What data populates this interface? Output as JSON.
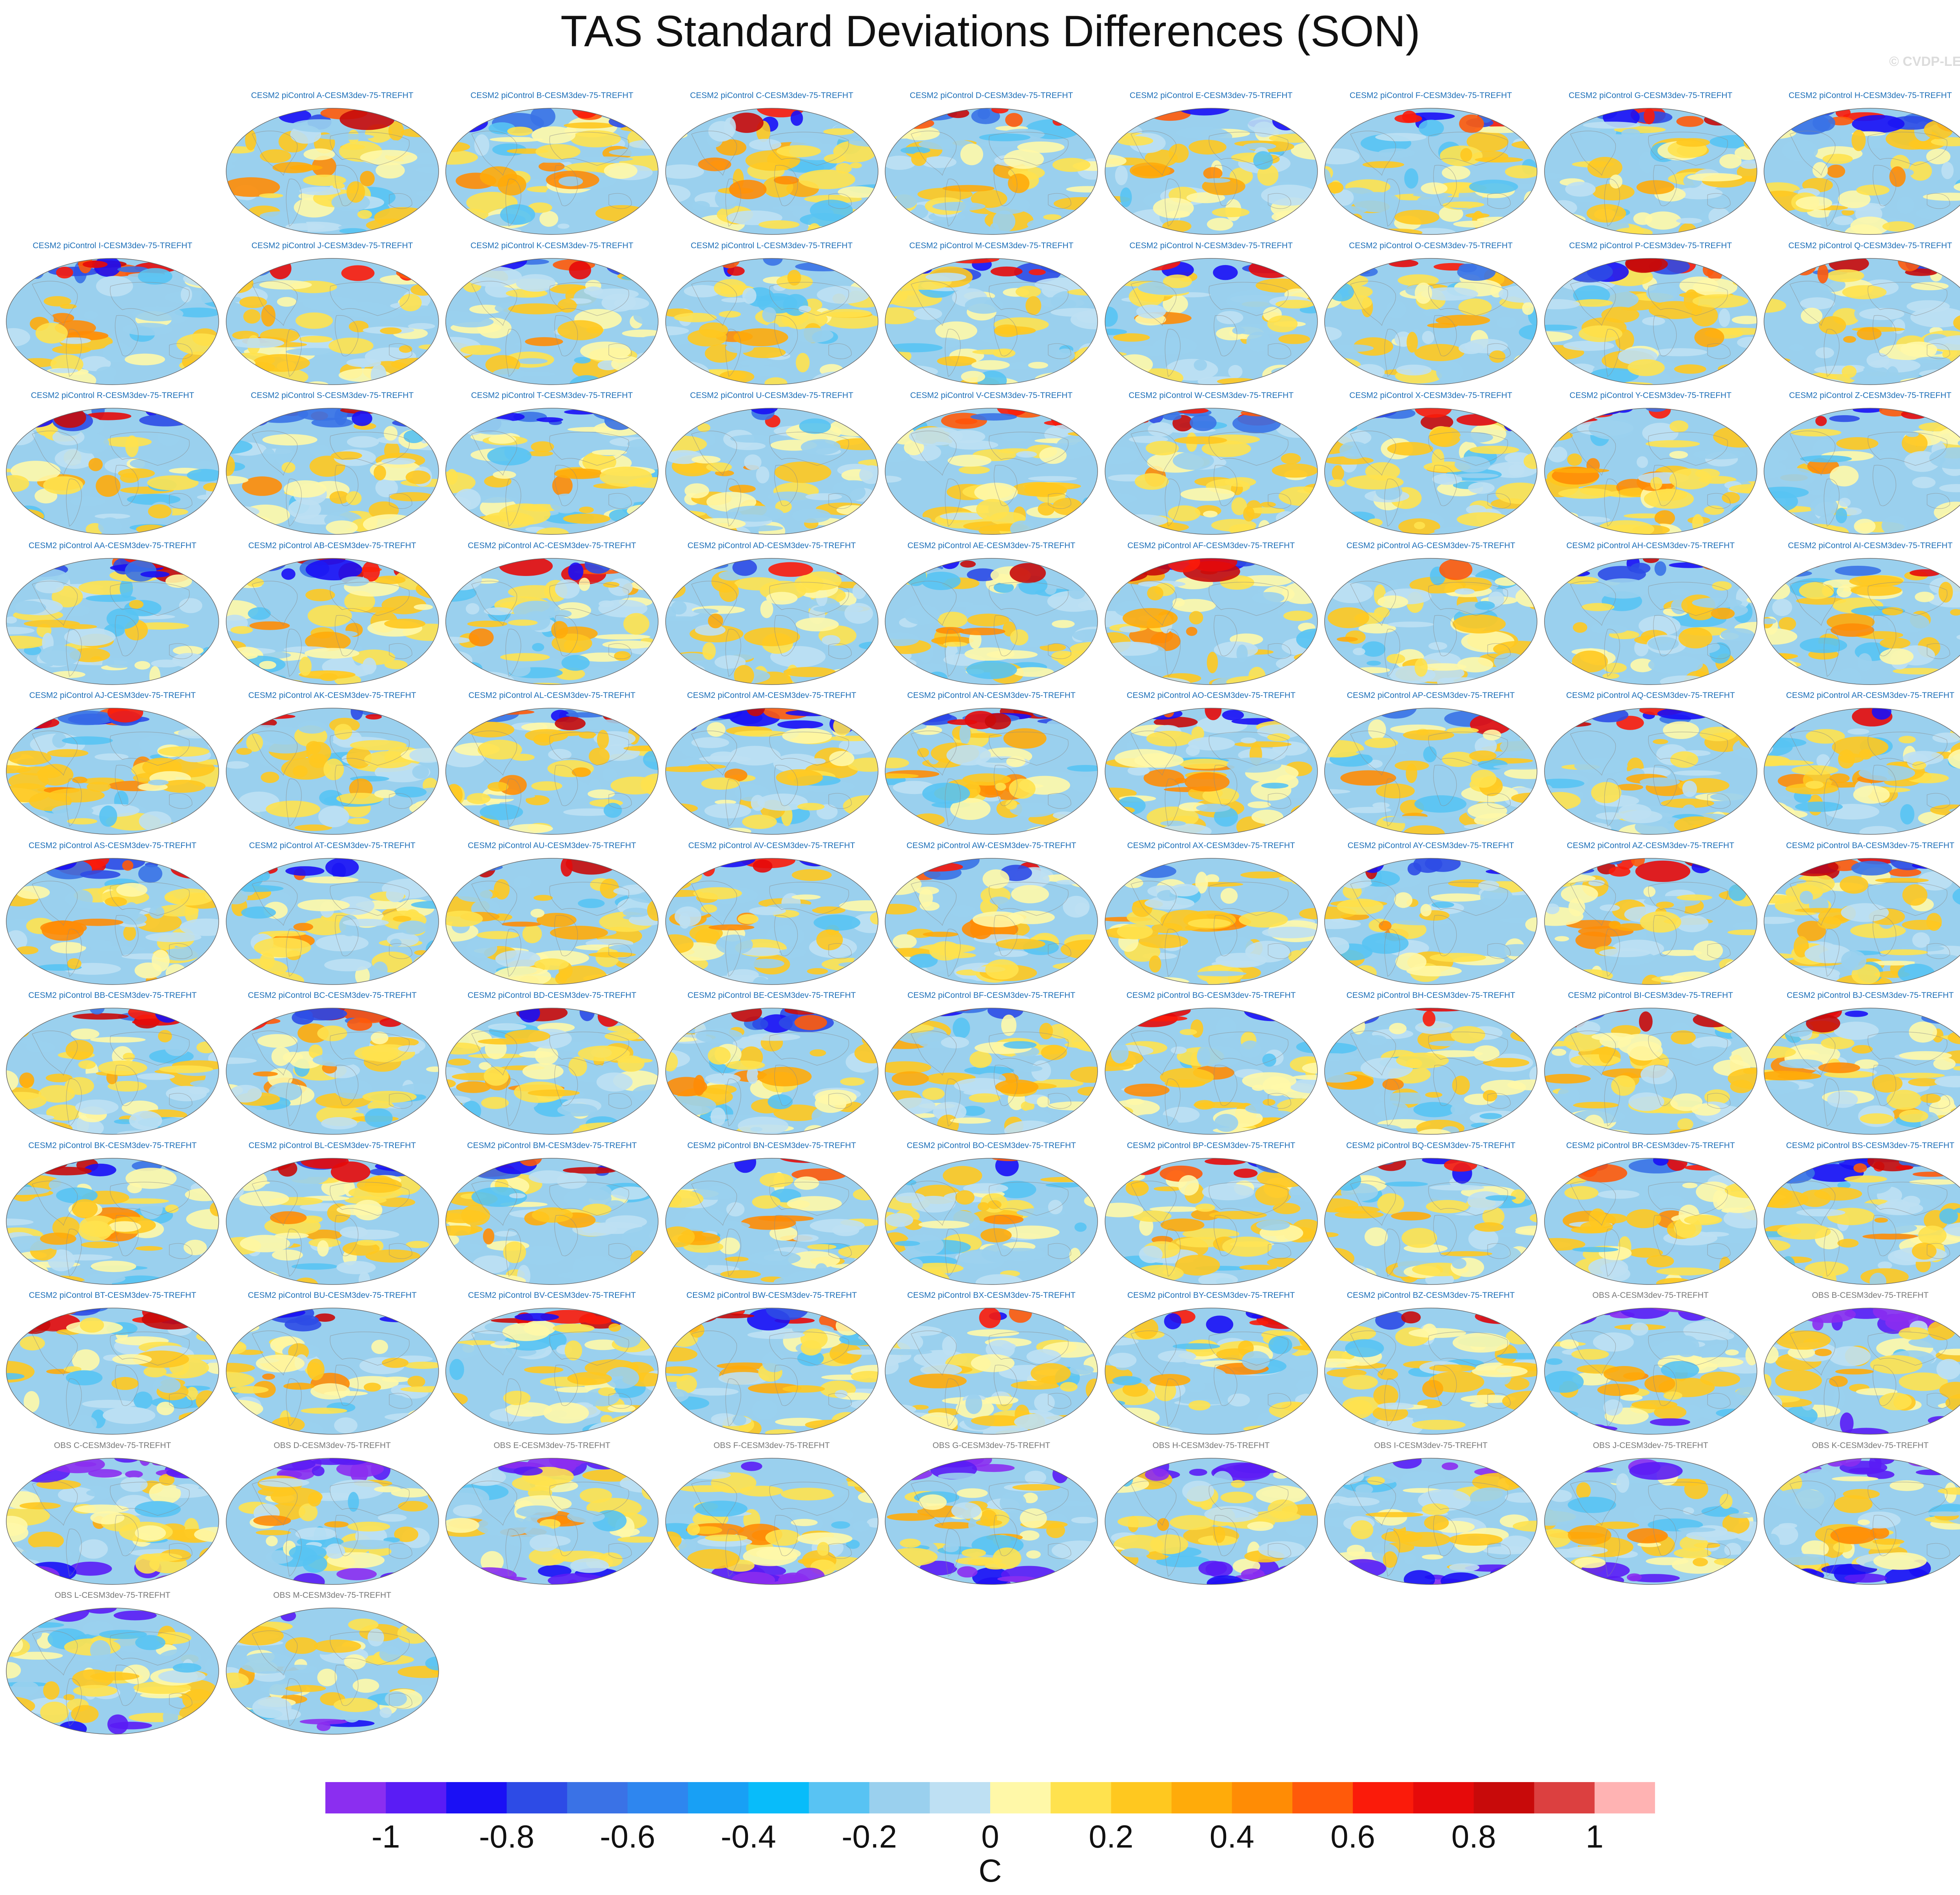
{
  "title": "TAS Standard Deviations Differences (SON)",
  "watermark": "© CVDP-LE",
  "chart_data": {
    "type": "heatmap",
    "description_kind": "panel grid of global difference maps",
    "variable": "TAS standard deviation difference",
    "season": "SON",
    "projection": "robinson",
    "panels": [
      {
        "title": "CESM2 piControl A-CESM3dev-75-TREFHT",
        "kind": "model"
      },
      {
        "title": "CESM2 piControl B-CESM3dev-75-TREFHT",
        "kind": "model"
      },
      {
        "title": "CESM2 piControl C-CESM3dev-75-TREFHT",
        "kind": "model"
      },
      {
        "title": "CESM2 piControl D-CESM3dev-75-TREFHT",
        "kind": "model"
      },
      {
        "title": "CESM2 piControl E-CESM3dev-75-TREFHT",
        "kind": "model"
      },
      {
        "title": "CESM2 piControl F-CESM3dev-75-TREFHT",
        "kind": "model"
      },
      {
        "title": "CESM2 piControl G-CESM3dev-75-TREFHT",
        "kind": "model"
      },
      {
        "title": "CESM2 piControl H-CESM3dev-75-TREFHT",
        "kind": "model"
      },
      {
        "title": "CESM2 piControl I-CESM3dev-75-TREFHT",
        "kind": "model"
      },
      {
        "title": "CESM2 piControl J-CESM3dev-75-TREFHT",
        "kind": "model"
      },
      {
        "title": "CESM2 piControl K-CESM3dev-75-TREFHT",
        "kind": "model"
      },
      {
        "title": "CESM2 piControl L-CESM3dev-75-TREFHT",
        "kind": "model"
      },
      {
        "title": "CESM2 piControl M-CESM3dev-75-TREFHT",
        "kind": "model"
      },
      {
        "title": "CESM2 piControl N-CESM3dev-75-TREFHT",
        "kind": "model"
      },
      {
        "title": "CESM2 piControl O-CESM3dev-75-TREFHT",
        "kind": "model"
      },
      {
        "title": "CESM2 piControl P-CESM3dev-75-TREFHT",
        "kind": "model"
      },
      {
        "title": "CESM2 piControl Q-CESM3dev-75-TREFHT",
        "kind": "model"
      },
      {
        "title": "CESM2 piControl R-CESM3dev-75-TREFHT",
        "kind": "model"
      },
      {
        "title": "CESM2 piControl S-CESM3dev-75-TREFHT",
        "kind": "model"
      },
      {
        "title": "CESM2 piControl T-CESM3dev-75-TREFHT",
        "kind": "model"
      },
      {
        "title": "CESM2 piControl U-CESM3dev-75-TREFHT",
        "kind": "model"
      },
      {
        "title": "CESM2 piControl V-CESM3dev-75-TREFHT",
        "kind": "model"
      },
      {
        "title": "CESM2 piControl W-CESM3dev-75-TREFHT",
        "kind": "model"
      },
      {
        "title": "CESM2 piControl X-CESM3dev-75-TREFHT",
        "kind": "model"
      },
      {
        "title": "CESM2 piControl Y-CESM3dev-75-TREFHT",
        "kind": "model"
      },
      {
        "title": "CESM2 piControl Z-CESM3dev-75-TREFHT",
        "kind": "model"
      },
      {
        "title": "CESM2 piControl AA-CESM3dev-75-TREFHT",
        "kind": "model"
      },
      {
        "title": "CESM2 piControl AB-CESM3dev-75-TREFHT",
        "kind": "model"
      },
      {
        "title": "CESM2 piControl AC-CESM3dev-75-TREFHT",
        "kind": "model"
      },
      {
        "title": "CESM2 piControl AD-CESM3dev-75-TREFHT",
        "kind": "model"
      },
      {
        "title": "CESM2 piControl AE-CESM3dev-75-TREFHT",
        "kind": "model"
      },
      {
        "title": "CESM2 piControl AF-CESM3dev-75-TREFHT",
        "kind": "model"
      },
      {
        "title": "CESM2 piControl AG-CESM3dev-75-TREFHT",
        "kind": "model"
      },
      {
        "title": "CESM2 piControl AH-CESM3dev-75-TREFHT",
        "kind": "model"
      },
      {
        "title": "CESM2 piControl AI-CESM3dev-75-TREFHT",
        "kind": "model"
      },
      {
        "title": "CESM2 piControl AJ-CESM3dev-75-TREFHT",
        "kind": "model"
      },
      {
        "title": "CESM2 piControl AK-CESM3dev-75-TREFHT",
        "kind": "model"
      },
      {
        "title": "CESM2 piControl AL-CESM3dev-75-TREFHT",
        "kind": "model"
      },
      {
        "title": "CESM2 piControl AM-CESM3dev-75-TREFHT",
        "kind": "model"
      },
      {
        "title": "CESM2 piControl AN-CESM3dev-75-TREFHT",
        "kind": "model"
      },
      {
        "title": "CESM2 piControl AO-CESM3dev-75-TREFHT",
        "kind": "model"
      },
      {
        "title": "CESM2 piControl AP-CESM3dev-75-TREFHT",
        "kind": "model"
      },
      {
        "title": "CESM2 piControl AQ-CESM3dev-75-TREFHT",
        "kind": "model"
      },
      {
        "title": "CESM2 piControl AR-CESM3dev-75-TREFHT",
        "kind": "model"
      },
      {
        "title": "CESM2 piControl AS-CESM3dev-75-TREFHT",
        "kind": "model"
      },
      {
        "title": "CESM2 piControl AT-CESM3dev-75-TREFHT",
        "kind": "model"
      },
      {
        "title": "CESM2 piControl AU-CESM3dev-75-TREFHT",
        "kind": "model"
      },
      {
        "title": "CESM2 piControl AV-CESM3dev-75-TREFHT",
        "kind": "model"
      },
      {
        "title": "CESM2 piControl AW-CESM3dev-75-TREFHT",
        "kind": "model"
      },
      {
        "title": "CESM2 piControl AX-CESM3dev-75-TREFHT",
        "kind": "model"
      },
      {
        "title": "CESM2 piControl AY-CESM3dev-75-TREFHT",
        "kind": "model"
      },
      {
        "title": "CESM2 piControl AZ-CESM3dev-75-TREFHT",
        "kind": "model"
      },
      {
        "title": "CESM2 piControl BA-CESM3dev-75-TREFHT",
        "kind": "model"
      },
      {
        "title": "CESM2 piControl BB-CESM3dev-75-TREFHT",
        "kind": "model"
      },
      {
        "title": "CESM2 piControl BC-CESM3dev-75-TREFHT",
        "kind": "model"
      },
      {
        "title": "CESM2 piControl BD-CESM3dev-75-TREFHT",
        "kind": "model"
      },
      {
        "title": "CESM2 piControl BE-CESM3dev-75-TREFHT",
        "kind": "model"
      },
      {
        "title": "CESM2 piControl BF-CESM3dev-75-TREFHT",
        "kind": "model"
      },
      {
        "title": "CESM2 piControl BG-CESM3dev-75-TREFHT",
        "kind": "model"
      },
      {
        "title": "CESM2 piControl BH-CESM3dev-75-TREFHT",
        "kind": "model"
      },
      {
        "title": "CESM2 piControl BI-CESM3dev-75-TREFHT",
        "kind": "model"
      },
      {
        "title": "CESM2 piControl BJ-CESM3dev-75-TREFHT",
        "kind": "model"
      },
      {
        "title": "CESM2 piControl BK-CESM3dev-75-TREFHT",
        "kind": "model"
      },
      {
        "title": "CESM2 piControl BL-CESM3dev-75-TREFHT",
        "kind": "model"
      },
      {
        "title": "CESM2 piControl BM-CESM3dev-75-TREFHT",
        "kind": "model"
      },
      {
        "title": "CESM2 piControl BN-CESM3dev-75-TREFHT",
        "kind": "model"
      },
      {
        "title": "CESM2 piControl BO-CESM3dev-75-TREFHT",
        "kind": "model"
      },
      {
        "title": "CESM2 piControl BP-CESM3dev-75-TREFHT",
        "kind": "model"
      },
      {
        "title": "CESM2 piControl BQ-CESM3dev-75-TREFHT",
        "kind": "model"
      },
      {
        "title": "CESM2 piControl BR-CESM3dev-75-TREFHT",
        "kind": "model"
      },
      {
        "title": "CESM2 piControl BS-CESM3dev-75-TREFHT",
        "kind": "model"
      },
      {
        "title": "CESM2 piControl BT-CESM3dev-75-TREFHT",
        "kind": "model"
      },
      {
        "title": "CESM2 piControl BU-CESM3dev-75-TREFHT",
        "kind": "model"
      },
      {
        "title": "CESM2 piControl BV-CESM3dev-75-TREFHT",
        "kind": "model"
      },
      {
        "title": "CESM2 piControl BW-CESM3dev-75-TREFHT",
        "kind": "model"
      },
      {
        "title": "CESM2 piControl BX-CESM3dev-75-TREFHT",
        "kind": "model"
      },
      {
        "title": "CESM2 piControl BY-CESM3dev-75-TREFHT",
        "kind": "model"
      },
      {
        "title": "CESM2 piControl BZ-CESM3dev-75-TREFHT",
        "kind": "model"
      },
      {
        "title": "OBS A-CESM3dev-75-TREFHT",
        "kind": "obs"
      },
      {
        "title": "OBS B-CESM3dev-75-TREFHT",
        "kind": "obs"
      },
      {
        "title": "OBS C-CESM3dev-75-TREFHT",
        "kind": "obs"
      },
      {
        "title": "OBS D-CESM3dev-75-TREFHT",
        "kind": "obs"
      },
      {
        "title": "OBS E-CESM3dev-75-TREFHT",
        "kind": "obs"
      },
      {
        "title": "OBS F-CESM3dev-75-TREFHT",
        "kind": "obs"
      },
      {
        "title": "OBS G-CESM3dev-75-TREFHT",
        "kind": "obs"
      },
      {
        "title": "OBS H-CESM3dev-75-TREFHT",
        "kind": "obs"
      },
      {
        "title": "OBS I-CESM3dev-75-TREFHT",
        "kind": "obs"
      },
      {
        "title": "OBS J-CESM3dev-75-TREFHT",
        "kind": "obs"
      },
      {
        "title": "OBS K-CESM3dev-75-TREFHT",
        "kind": "obs"
      },
      {
        "title": "OBS L-CESM3dev-75-TREFHT",
        "kind": "obs"
      },
      {
        "title": "OBS M-CESM3dev-75-TREFHT",
        "kind": "obs"
      }
    ],
    "colorbar": {
      "unit": "C",
      "boundaries": [
        -1.1,
        -1.0,
        -0.9,
        -0.8,
        -0.7,
        -0.6,
        -0.5,
        -0.4,
        -0.3,
        -0.2,
        -0.1,
        0.0,
        0.1,
        0.2,
        0.3,
        0.4,
        0.5,
        0.6,
        0.7,
        0.8,
        0.9,
        1.0,
        1.1
      ],
      "colors": [
        "#8b2ef0",
        "#5a1cf5",
        "#1a10f5",
        "#2d4be6",
        "#3a72e6",
        "#2e86ef",
        "#18a0f5",
        "#08bcfa",
        "#58c3f3",
        "#9ad0ee",
        "#bee0f3",
        "#fff8a8",
        "#ffe24e",
        "#ffc81f",
        "#ffab0a",
        "#ff8c05",
        "#ff5a0a",
        "#fb1b0a",
        "#e60a0a",
        "#c80a0a",
        "#dc4040",
        "#ffb3b3"
      ],
      "tick_values": [
        -1,
        -0.8,
        -0.6,
        -0.4,
        -0.2,
        0,
        0.2,
        0.4,
        0.6,
        0.8,
        1
      ],
      "tick_labels": [
        "-1",
        "-0.8",
        "-0.6",
        "-0.4",
        "-0.2",
        "0",
        "0.2",
        "0.4",
        "0.6",
        "0.8",
        "1"
      ]
    }
  }
}
